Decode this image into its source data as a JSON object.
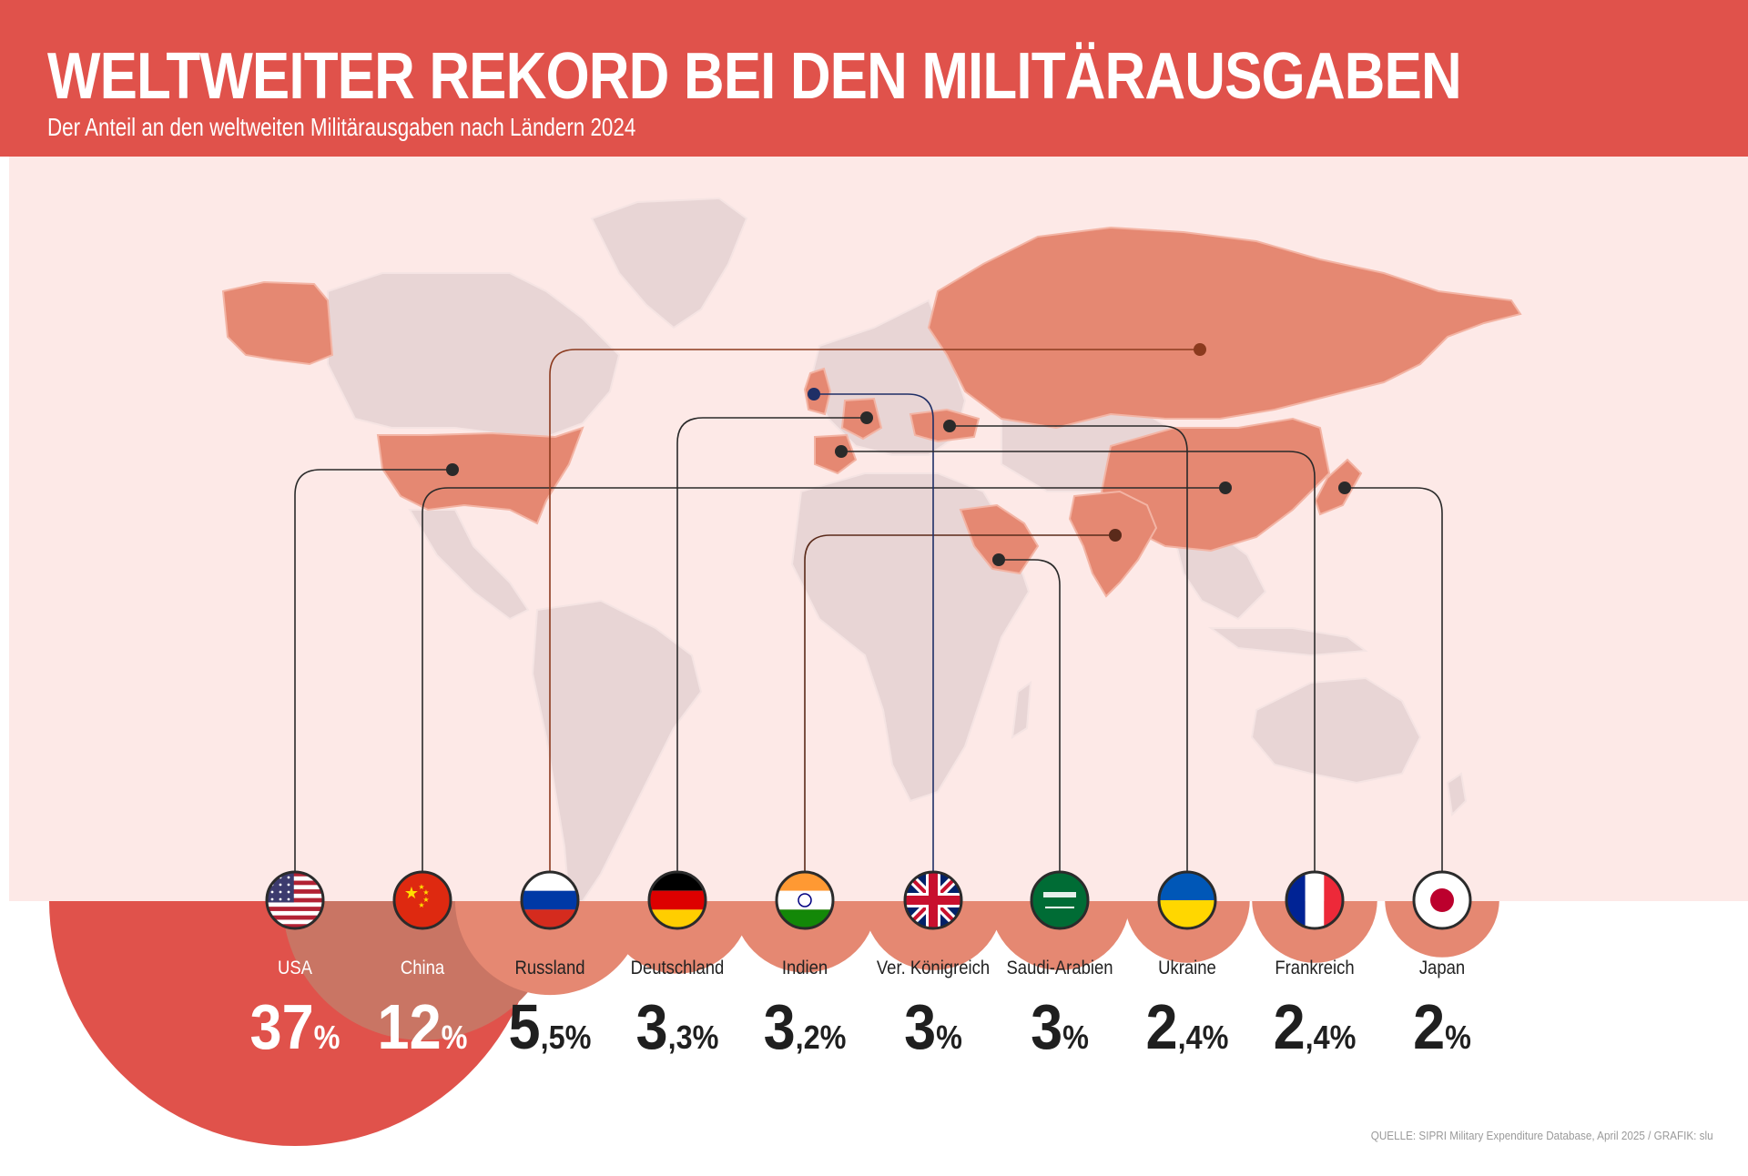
{
  "header": {
    "title": "WELTWEITER REKORD BEI DEN MILITÄRAUSGABEN",
    "subtitle": "Der Anteil an den weltweiten Militärausgaben nach Ländern 2024"
  },
  "footer": {
    "source": "QUELLE: SIPRI Military Expenditure Database, April 2025 / GRAFIK: slu"
  },
  "colors": {
    "accent": "#e0524b",
    "map_background": "#fde9e7",
    "land": "#e8d5d5",
    "highlighted_country": "#e58872",
    "dark_text": "#1f1f1f"
  },
  "chart_data": {
    "type": "bar",
    "title": "WELTWEITER REKORD BEI DEN MILITÄRAUSGABEN",
    "subtitle": "Der Anteil an den weltweiten Militärausgaben nach Ländern 2024",
    "unit": "%",
    "categories": [
      "USA",
      "China",
      "Russland",
      "Deutschland",
      "Indien",
      "Ver. Königreich",
      "Saudi-Arabien",
      "Ukraine",
      "Frankreich",
      "Japan"
    ],
    "values": [
      37,
      12,
      5.5,
      3.3,
      3.2,
      3,
      3,
      2.4,
      2.4,
      2
    ],
    "value_labels": [
      {
        "main": "37",
        "decimal": "",
        "unit": "%"
      },
      {
        "main": "12",
        "decimal": "",
        "unit": "%"
      },
      {
        "main": "5",
        "decimal": ",5",
        "unit": "%"
      },
      {
        "main": "3",
        "decimal": ",3",
        "unit": "%"
      },
      {
        "main": "3",
        "decimal": ",2",
        "unit": "%"
      },
      {
        "main": "3",
        "decimal": "",
        "unit": "%"
      },
      {
        "main": "3",
        "decimal": "",
        "unit": "%"
      },
      {
        "main": "2",
        "decimal": ",4",
        "unit": "%"
      },
      {
        "main": "2",
        "decimal": ",4",
        "unit": "%"
      },
      {
        "main": "2",
        "decimal": "",
        "unit": "%"
      }
    ],
    "flags": [
      "usa-flag",
      "china-flag",
      "russia-flag",
      "germany-flag",
      "india-flag",
      "uk-flag",
      "saudi-arabia-flag",
      "ukraine-flag",
      "france-flag",
      "japan-flag"
    ],
    "encoding": "circle area proportional to share",
    "background_map": "world map with the ten countries highlighted"
  }
}
